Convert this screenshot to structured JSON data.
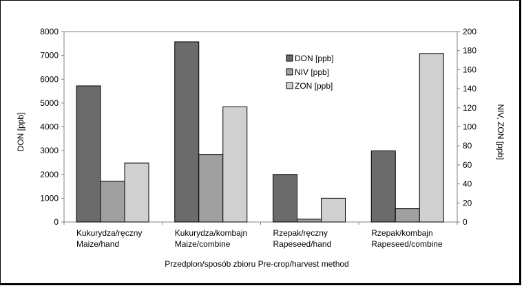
{
  "chart_data": {
    "type": "bar",
    "categories": [
      [
        "Kukurydza/ręczny",
        "Maize/hand"
      ],
      [
        "Kukurydza/kombajn",
        "Maize/combine"
      ],
      [
        "Rzepak/ręczny",
        "Rapeseed/hand"
      ],
      [
        "Rzepak/kombajn",
        "Rapeseed/combine"
      ]
    ],
    "series": [
      {
        "name": "DON [ppb]",
        "axis": "left",
        "color": "#6b6b6b",
        "values": [
          5720,
          7570,
          2000,
          2990
        ]
      },
      {
        "name": "NIV [ppb]",
        "axis": "right",
        "color": "#a0a0a0",
        "values": [
          43,
          71,
          3,
          14
        ]
      },
      {
        "name": "ZON [ppb]",
        "axis": "right",
        "color": "#d0d0d0",
        "values": [
          62,
          121,
          25,
          177
        ]
      }
    ],
    "xlabel": "Przedplon/sposób zbioru Pre-crop/harvest method",
    "ylabel": "DON [ppb]",
    "y2label": "NIV, ZON [ppb]",
    "ylim": [
      0,
      8000
    ],
    "y2lim": [
      0,
      200
    ],
    "yticks": [
      "0",
      "1000",
      "2000",
      "3000",
      "4000",
      "5000",
      "6000",
      "7000",
      "8000"
    ],
    "y2ticks": [
      "0",
      "20",
      "40",
      "60",
      "80",
      "100",
      "120",
      "140",
      "160",
      "180",
      "200"
    ],
    "legend_position": "top-center",
    "grid": false
  }
}
